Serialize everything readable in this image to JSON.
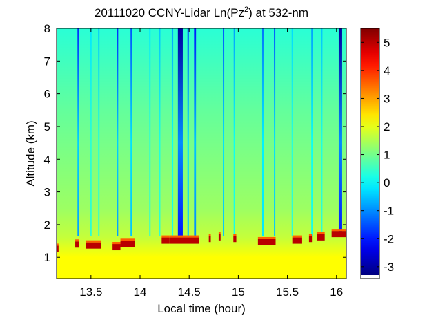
{
  "chart_data": {
    "type": "heatmap",
    "title": "20111020 CCNY-Lidar Ln(Pz",
    "title_superscript": "2",
    "title_suffix": ") at 532-nm",
    "xlabel": "Local time (hour)",
    "ylabel": "Altitude (km)",
    "xlim": [
      13.15,
      16.1
    ],
    "ylim": [
      0.35,
      8.0
    ],
    "x_ticks": [
      13.5,
      14,
      14.5,
      15,
      15.5,
      16
    ],
    "x_tick_labels": [
      "13.5",
      "14",
      "14.5",
      "15",
      "15.5",
      "16"
    ],
    "y_ticks": [
      1,
      2,
      3,
      4,
      5,
      6,
      7,
      8
    ],
    "y_tick_labels": [
      "1",
      "2",
      "3",
      "4",
      "5",
      "6",
      "7",
      "8"
    ],
    "colorbar": {
      "clim": [
        -3.3,
        5.5
      ],
      "colormap": "jet",
      "ticks": [
        -3,
        -2,
        -1,
        0,
        1,
        2,
        3,
        4,
        5
      ],
      "tick_labels": [
        "-3",
        "-2",
        "-1",
        "0",
        "1",
        "2",
        "3",
        "4",
        "5"
      ]
    },
    "background_profile": {
      "altitude_km": [
        0.35,
        1.0,
        1.6,
        2.5,
        4.0,
        5.5,
        7.0,
        8.0
      ],
      "value": [
        2.2,
        2.2,
        1.7,
        1.35,
        1.1,
        0.85,
        0.55,
        0.35
      ]
    },
    "boundary_layer_top_km": 1.6,
    "cloud_layer": {
      "description_value": 5.0,
      "segments": [
        {
          "start": 13.15,
          "end": 13.17,
          "altitude_km": 1.25
        },
        {
          "start": 13.34,
          "end": 13.38,
          "altitude_km": 1.38
        },
        {
          "start": 13.45,
          "end": 13.6,
          "altitude_km": 1.35
        },
        {
          "start": 13.72,
          "end": 13.8,
          "altitude_km": 1.3
        },
        {
          "start": 13.8,
          "end": 13.95,
          "altitude_km": 1.4
        },
        {
          "start": 14.22,
          "end": 14.3,
          "altitude_km": 1.5
        },
        {
          "start": 14.3,
          "end": 14.6,
          "altitude_km": 1.5
        },
        {
          "start": 14.7,
          "end": 14.72,
          "altitude_km": 1.55
        },
        {
          "start": 14.8,
          "end": 14.82,
          "altitude_km": 1.6
        },
        {
          "start": 14.95,
          "end": 14.98,
          "altitude_km": 1.55
        },
        {
          "start": 15.2,
          "end": 15.38,
          "altitude_km": 1.45
        },
        {
          "start": 15.55,
          "end": 15.65,
          "altitude_km": 1.5
        },
        {
          "start": 15.72,
          "end": 15.75,
          "altitude_km": 1.55
        },
        {
          "start": 15.8,
          "end": 15.88,
          "altitude_km": 1.6
        },
        {
          "start": 15.95,
          "end": 16.1,
          "altitude_km": 1.7
        }
      ]
    },
    "low_signal_columns": [
      {
        "time": 13.37,
        "width_h": 0.015,
        "min": -1.8
      },
      {
        "time": 13.5,
        "width_h": 0.008,
        "min": -0.2
      },
      {
        "time": 13.58,
        "width_h": 0.008,
        "min": -0.5
      },
      {
        "time": 13.77,
        "width_h": 0.015,
        "min": -1.8
      },
      {
        "time": 13.91,
        "width_h": 0.012,
        "min": -1.5
      },
      {
        "time": 14.1,
        "width_h": 0.008,
        "min": -0.2
      },
      {
        "time": 14.2,
        "width_h": 0.01,
        "min": -0.5
      },
      {
        "time": 14.33,
        "width_h": 0.015,
        "min": -0.8
      },
      {
        "time": 14.41,
        "width_h": 0.05,
        "min": -3.0
      },
      {
        "time": 14.49,
        "width_h": 0.015,
        "min": -1.5
      },
      {
        "time": 14.56,
        "width_h": 0.02,
        "min": -2.0
      },
      {
        "time": 14.85,
        "width_h": 0.012,
        "min": -1.5
      },
      {
        "time": 14.96,
        "width_h": 0.01,
        "min": -0.8
      },
      {
        "time": 15.25,
        "width_h": 0.012,
        "min": -1.2
      },
      {
        "time": 15.37,
        "width_h": 0.012,
        "min": -1.5
      },
      {
        "time": 15.55,
        "width_h": 0.008,
        "min": -0.3
      },
      {
        "time": 15.75,
        "width_h": 0.012,
        "min": -0.8
      },
      {
        "time": 15.85,
        "width_h": 0.008,
        "min": -0.5
      },
      {
        "time": 16.04,
        "width_h": 0.035,
        "min": -3.0
      }
    ]
  }
}
